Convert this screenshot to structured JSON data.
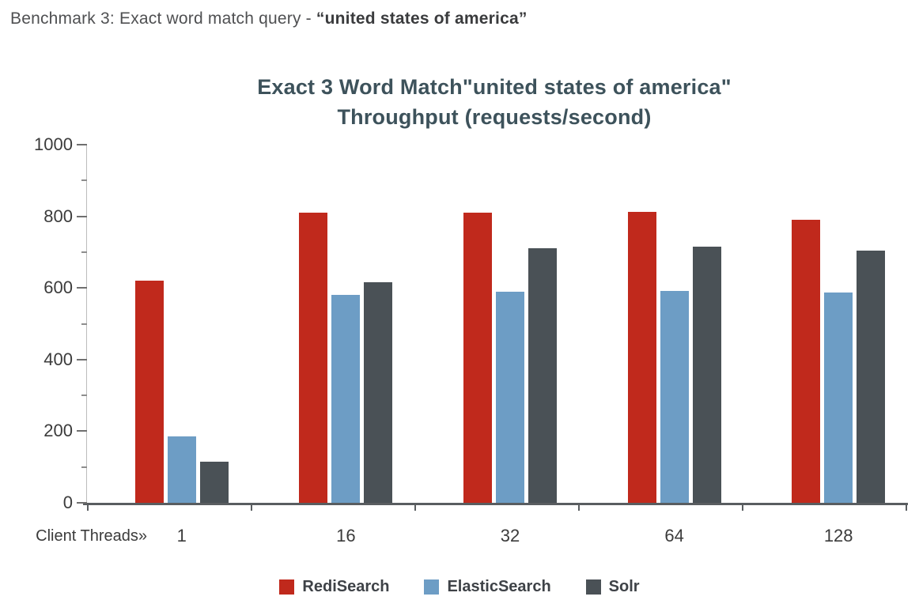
{
  "header": {
    "prefix": "Benchmark 3: Exact word match query - ",
    "highlight": "“united states of america”"
  },
  "chart_data": {
    "type": "bar",
    "title_line1": "Exact 3 Word Match\"united states of america\"",
    "title_line2": "Throughput (requests/second)",
    "xlabel": "Client Threads»",
    "categories": [
      "1",
      "16",
      "32",
      "64",
      "128"
    ],
    "series": [
      {
        "name": "RediSearch",
        "color": "#c0291c",
        "values": [
          620,
          810,
          810,
          812,
          790
        ]
      },
      {
        "name": "ElasticSearch",
        "color": "#6d9dc5",
        "values": [
          185,
          580,
          590,
          592,
          588
        ]
      },
      {
        "name": "Solr",
        "color": "#4a5156",
        "values": [
          115,
          615,
          710,
          715,
          705
        ]
      }
    ],
    "ylim": [
      0,
      1000
    ],
    "yticks": [
      0,
      200,
      400,
      600,
      800,
      1000
    ],
    "grid": false,
    "legend_position": "bottom"
  }
}
